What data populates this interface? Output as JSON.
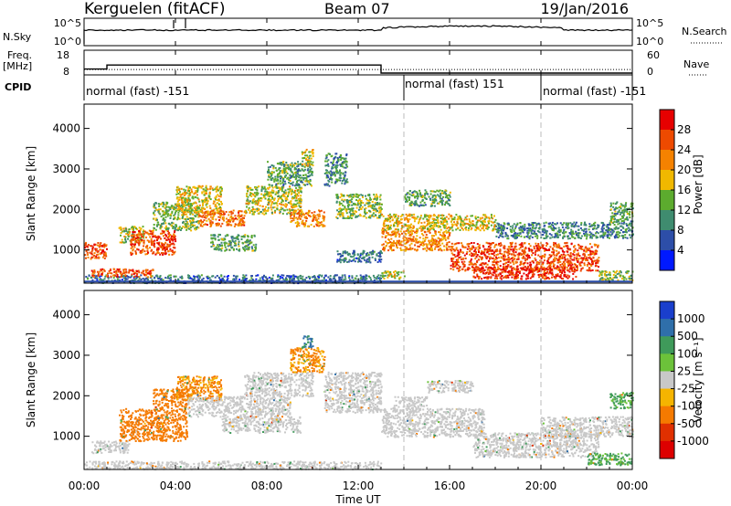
{
  "header": {
    "radar": "Kerguelen (fitACF)",
    "beam": "Beam 07",
    "date": "19/Jan/2016"
  },
  "nsky_panel": {
    "left_label": "N.Sky",
    "right_label": "N.Search",
    "left_ticks": [
      "10^5",
      "10^0"
    ],
    "right_ticks": [
      "10^5",
      "10^0"
    ]
  },
  "freq_panel": {
    "left_label_1": "Freq.",
    "left_label_2": "[MHz]",
    "right_label": "Nave",
    "left_ticks": [
      "18",
      "8"
    ],
    "right_ticks": [
      "60",
      "0"
    ]
  },
  "cpid": {
    "label": "CPID",
    "segments": [
      {
        "text": "normal (fast) -151",
        "start": 0,
        "end": 14
      },
      {
        "text": "normal (fast) 151",
        "start": 14,
        "end": 20
      },
      {
        "text": "normal (fast) -151",
        "start": 20,
        "end": 24
      }
    ]
  },
  "power_panel": {
    "ylabel": "Slant Range [km]",
    "yticks": [
      "1000",
      "2000",
      "3000",
      "4000"
    ],
    "colorbar_label": "Power [dB]",
    "colorbar_ticks": [
      "4",
      "8",
      "12",
      "16",
      "20",
      "24",
      "28"
    ],
    "colorbar_colors": [
      "#0019ff",
      "#2d4ea8",
      "#3f8c6f",
      "#5cab2e",
      "#f0b800",
      "#f58200",
      "#ee4a00",
      "#e60000"
    ]
  },
  "velocity_panel": {
    "ylabel": "Slant Range [km]",
    "yticks": [
      "1000",
      "2000",
      "3000",
      "4000"
    ],
    "colorbar_label": "Velocity [m s⁻¹]",
    "colorbar_ticks": [
      "1000",
      "500",
      "100",
      "25",
      "-25",
      "-100",
      "-500",
      "-1000"
    ],
    "colorbar_colors": [
      "#1a3fcc",
      "#2f6faa",
      "#3f9a5a",
      "#6cc23a",
      "#c8c8c8",
      "#f5b400",
      "#f57a00",
      "#e03000",
      "#dd0000"
    ]
  },
  "xaxis": {
    "label": "Time UT",
    "ticks": [
      "00:00",
      "04:00",
      "08:00",
      "12:00",
      "16:00",
      "20:00",
      "00:00"
    ]
  },
  "chart_data": {
    "type": "heatmap",
    "title": "Kerguelen (fitACF) Beam 07 19/Jan/2016",
    "xlabel": "Time UT",
    "ylabel": "Slant Range [km]",
    "xlim": [
      0,
      24
    ],
    "ylim": [
      180,
      4600
    ],
    "frequency_steps": [
      {
        "start": 0,
        "end": 1,
        "freq_mhz": 10
      },
      {
        "start": 1,
        "end": 13,
        "freq_mhz": 12
      },
      {
        "start": 13,
        "end": 24,
        "freq_mhz": 8
      }
    ],
    "nave_level": 13,
    "power_regions": [
      {
        "t0": 0.0,
        "t1": 13.0,
        "r0": 200,
        "r1": 400,
        "dB": 8
      },
      {
        "t0": 0.0,
        "t1": 1.0,
        "r0": 800,
        "r1": 1200,
        "dB": 26
      },
      {
        "t0": 0.3,
        "t1": 3.0,
        "r0": 350,
        "r1": 550,
        "dB": 26
      },
      {
        "t0": 1.5,
        "t1": 2.6,
        "r0": 1200,
        "r1": 1600,
        "dB": 16
      },
      {
        "t0": 2.0,
        "t1": 4.0,
        "r0": 900,
        "r1": 1500,
        "dB": 26
      },
      {
        "t0": 3.0,
        "t1": 5.0,
        "r0": 1500,
        "r1": 2200,
        "dB": 14
      },
      {
        "t0": 4.0,
        "t1": 6.0,
        "r0": 1900,
        "r1": 2600,
        "dB": 18
      },
      {
        "t0": 5.0,
        "t1": 7.0,
        "r0": 1600,
        "r1": 2000,
        "dB": 24
      },
      {
        "t0": 5.5,
        "t1": 7.5,
        "r0": 1000,
        "r1": 1400,
        "dB": 12
      },
      {
        "t0": 7.0,
        "t1": 9.5,
        "r0": 1900,
        "r1": 2600,
        "dB": 16
      },
      {
        "t0": 8.0,
        "t1": 10.0,
        "r0": 2600,
        "r1": 3200,
        "dB": 12
      },
      {
        "t0": 9.0,
        "t1": 10.5,
        "r0": 1600,
        "r1": 2000,
        "dB": 22
      },
      {
        "t0": 9.5,
        "t1": 10.0,
        "r0": 3100,
        "r1": 3500,
        "dB": 16
      },
      {
        "t0": 10.5,
        "t1": 11.5,
        "r0": 2600,
        "r1": 3400,
        "dB": 10
      },
      {
        "t0": 11.0,
        "t1": 13.0,
        "r0": 1800,
        "r1": 2400,
        "dB": 14
      },
      {
        "t0": 11.0,
        "t1": 13.0,
        "r0": 700,
        "r1": 1000,
        "dB": 8
      },
      {
        "t0": 13.0,
        "t1": 16.0,
        "r0": 1000,
        "r1": 1500,
        "dB": 22
      },
      {
        "t0": 13.0,
        "t1": 18.0,
        "r0": 1500,
        "r1": 1900,
        "dB": 18
      },
      {
        "t0": 13.0,
        "t1": 14.0,
        "r0": 300,
        "r1": 500,
        "dB": 16
      },
      {
        "t0": 14.0,
        "t1": 16.0,
        "r0": 2100,
        "r1": 2500,
        "dB": 12
      },
      {
        "t0": 16.0,
        "t1": 22.5,
        "r0": 500,
        "r1": 1200,
        "dB": 26
      },
      {
        "t0": 17.0,
        "t1": 21.5,
        "r0": 300,
        "r1": 600,
        "dB": 28
      },
      {
        "t0": 18.0,
        "t1": 24.0,
        "r0": 1300,
        "r1": 1700,
        "dB": 10
      },
      {
        "t0": 22.5,
        "t1": 24.0,
        "r0": 250,
        "r1": 500,
        "dB": 14
      },
      {
        "t0": 23.0,
        "t1": 24.0,
        "r0": 1700,
        "r1": 2200,
        "dB": 12
      }
    ],
    "velocity_regions": [
      {
        "t0": 0.0,
        "t1": 13.0,
        "r0": 200,
        "r1": 400,
        "v": 0
      },
      {
        "t0": 0.3,
        "t1": 2.0,
        "r0": 600,
        "r1": 900,
        "v": 0
      },
      {
        "t0": 1.5,
        "t1": 4.5,
        "r0": 900,
        "r1": 1700,
        "v": -300
      },
      {
        "t0": 3.0,
        "t1": 4.5,
        "r0": 1700,
        "r1": 2200,
        "v": -300
      },
      {
        "t0": 4.0,
        "t1": 6.0,
        "r0": 1900,
        "r1": 2500,
        "v": -120
      },
      {
        "t0": 4.5,
        "t1": 9.0,
        "r0": 1500,
        "r1": 2000,
        "v": 0
      },
      {
        "t0": 6.0,
        "t1": 9.5,
        "r0": 1100,
        "r1": 1500,
        "v": 0
      },
      {
        "t0": 7.0,
        "t1": 10.0,
        "r0": 2000,
        "r1": 2600,
        "v": 0
      },
      {
        "t0": 9.0,
        "t1": 10.5,
        "r0": 2600,
        "r1": 3200,
        "v": -120
      },
      {
        "t0": 9.5,
        "t1": 10.0,
        "r0": 3200,
        "r1": 3500,
        "v": 600
      },
      {
        "t0": 10.5,
        "t1": 13.0,
        "r0": 1600,
        "r1": 2600,
        "v": 0
      },
      {
        "t0": 13.0,
        "t1": 17.5,
        "r0": 1000,
        "r1": 1700,
        "v": 0
      },
      {
        "t0": 13.5,
        "t1": 15.0,
        "r0": 1700,
        "r1": 2000,
        "v": 0
      },
      {
        "t0": 15.0,
        "t1": 17.0,
        "r0": 2100,
        "r1": 2400,
        "v": 0
      },
      {
        "t0": 17.0,
        "t1": 22.5,
        "r0": 500,
        "r1": 1100,
        "v": 0
      },
      {
        "t0": 20.0,
        "t1": 24.0,
        "r0": 1000,
        "r1": 1500,
        "v": 0
      },
      {
        "t0": 22.0,
        "t1": 24.0,
        "r0": 300,
        "r1": 600,
        "v": 120
      },
      {
        "t0": 23.0,
        "t1": 24.0,
        "r0": 1700,
        "r1": 2100,
        "v": 120
      }
    ]
  }
}
